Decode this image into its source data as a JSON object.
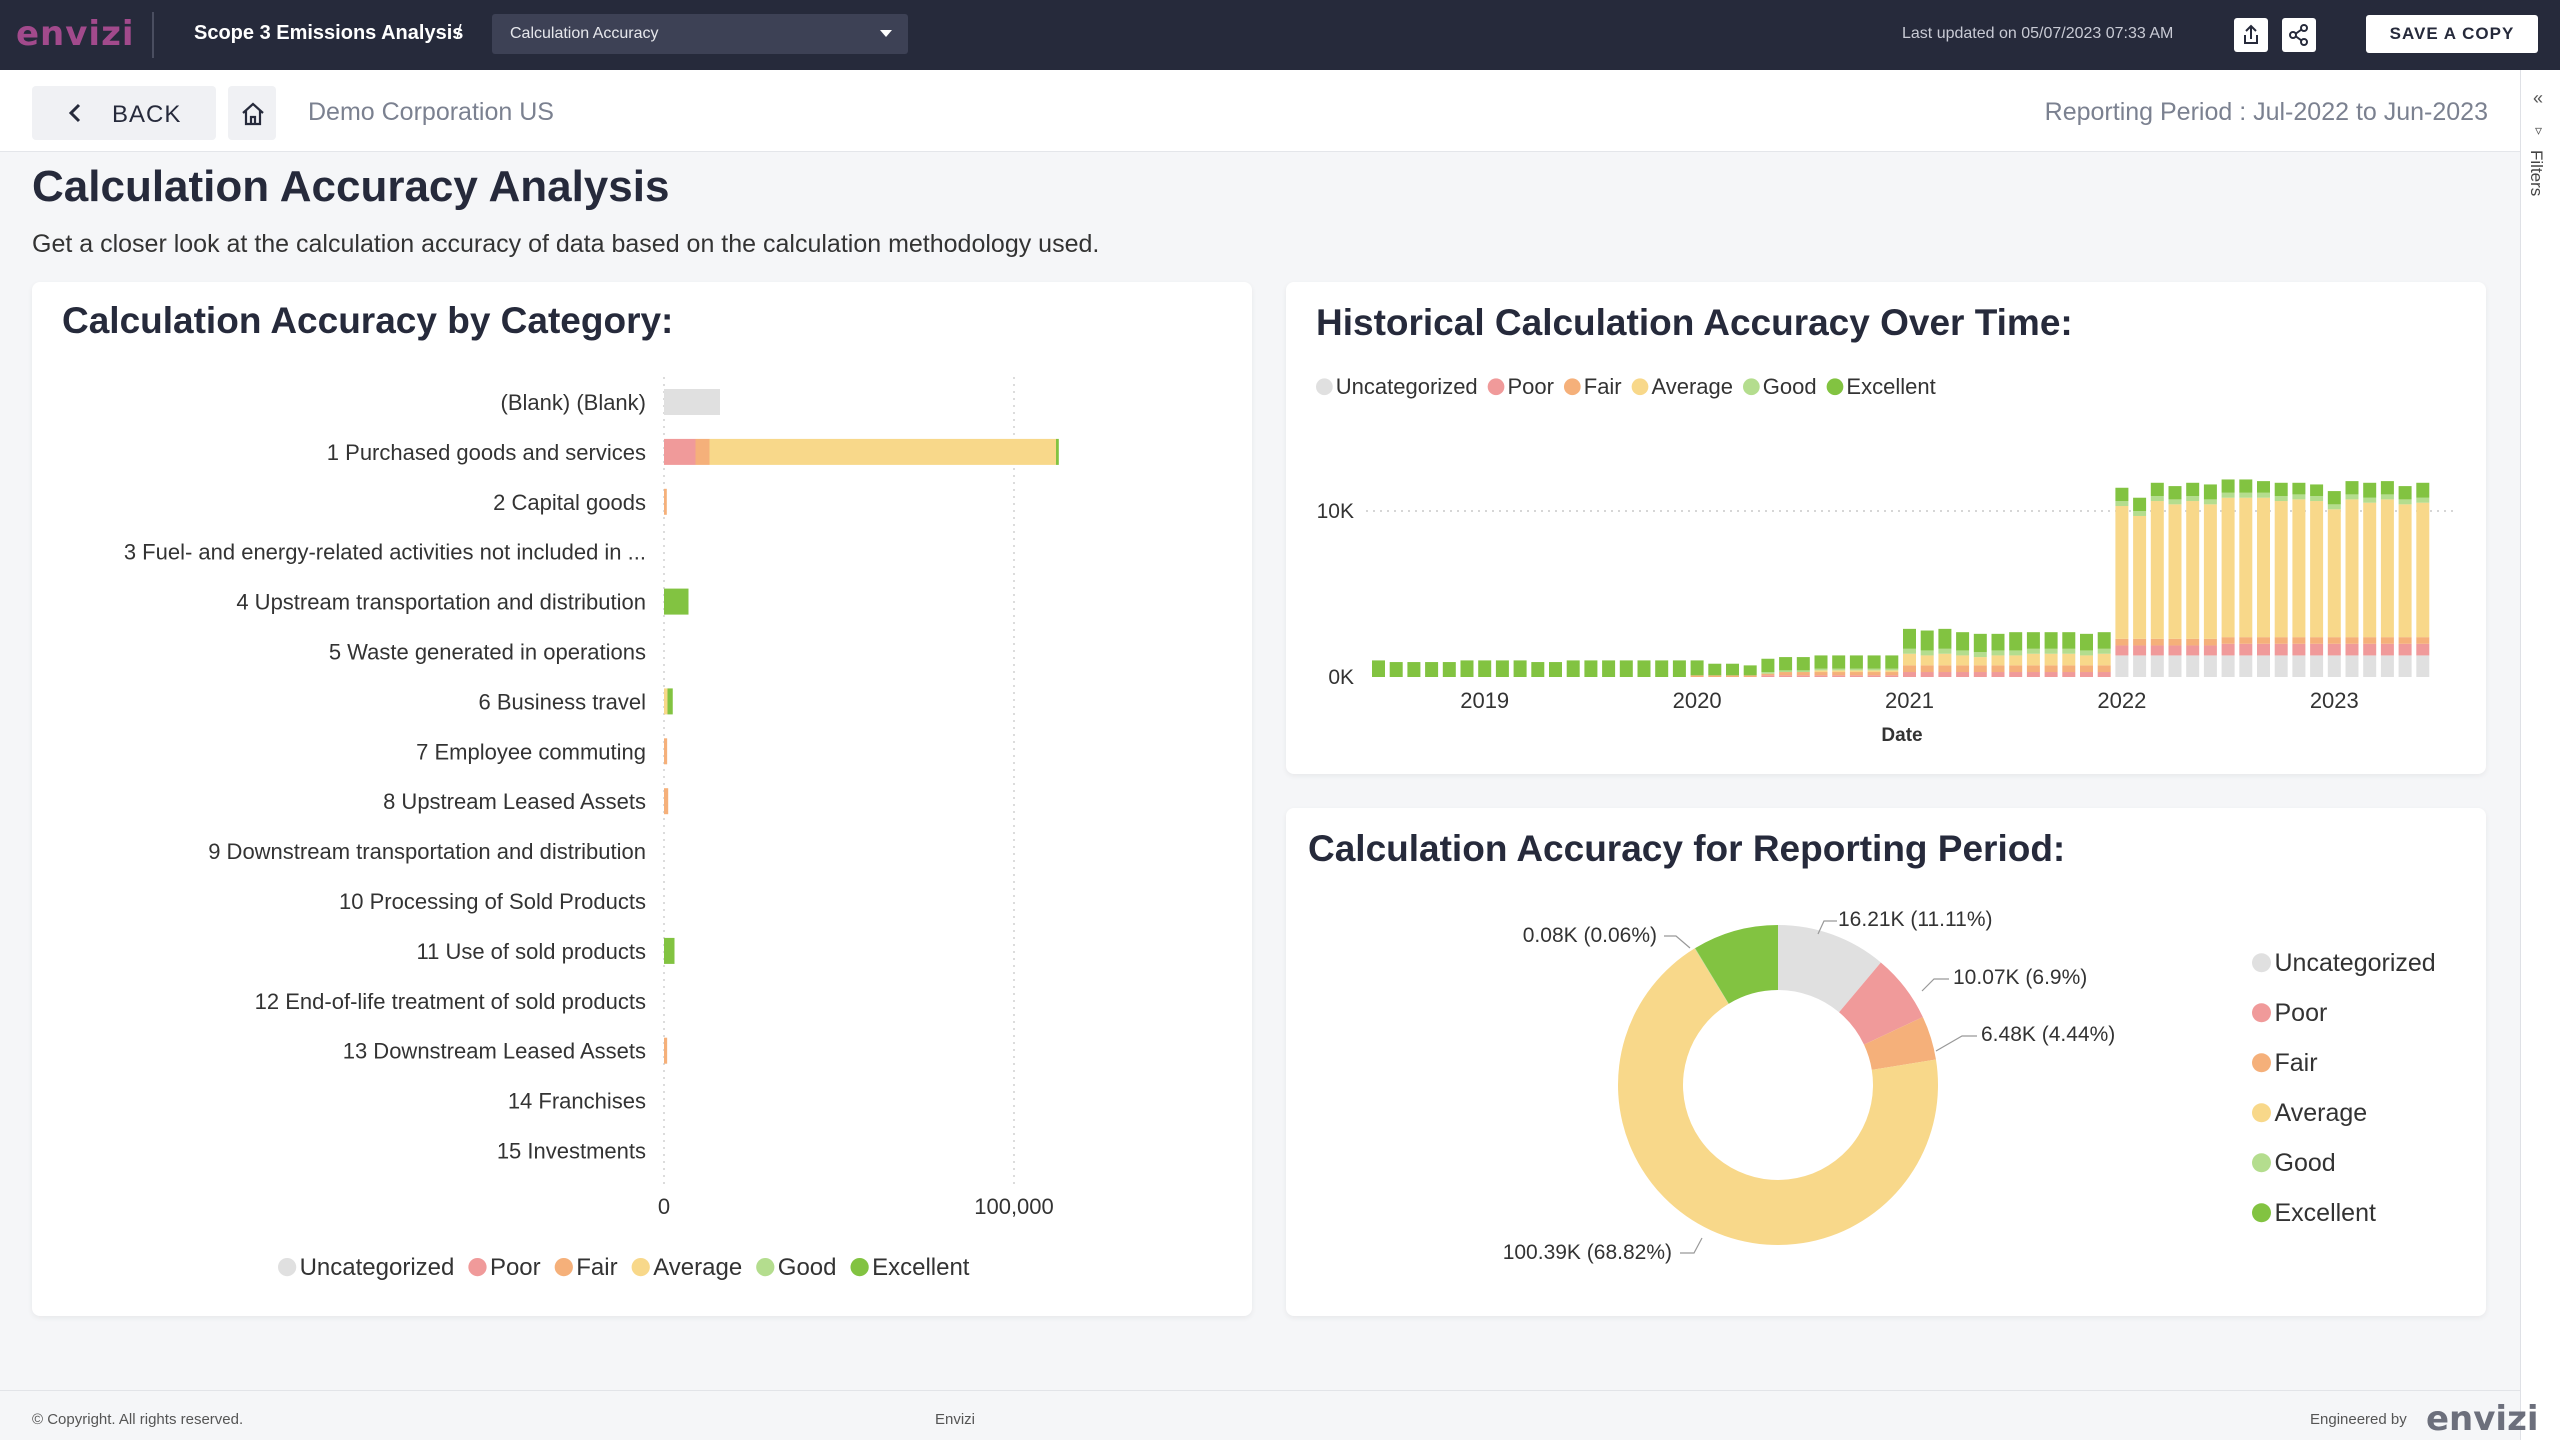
{
  "app": {
    "logo": "envizi",
    "title": "Scope 3 Emissions Analysis",
    "separator": "/"
  },
  "page_select": {
    "selected": "Calculation Accuracy"
  },
  "toolbar": {
    "last_updated": "Last updated on 05/07/2023 07:33 AM",
    "save_label": "SAVE A COPY"
  },
  "nav": {
    "back_label": "BACK",
    "organization": "Demo Corporation US",
    "reporting_period": "Reporting Period : Jul-2022 to Jun-2023"
  },
  "filters_rail": {
    "label": "Filters"
  },
  "page": {
    "title": "Calculation Accuracy Analysis",
    "description": "Get a closer look at the calculation accuracy of data based on the calculation methodology used."
  },
  "legend": [
    "Uncategorized",
    "Poor",
    "Fair",
    "Average",
    "Good",
    "Excellent"
  ],
  "colors": {
    "Uncategorized": "#e0e0e0",
    "Poor": "#f09a9a",
    "Fair": "#f5b07a",
    "Average": "#f8d88a",
    "Good": "#b4dd8e",
    "Excellent": "#82c341"
  },
  "cards": {
    "by_category": {
      "title": "Calculation Accuracy by Category:"
    },
    "historical": {
      "title": "Historical Calculation Accuracy Over Time:"
    },
    "reporting": {
      "title": "Calculation Accuracy for Reporting Period:"
    }
  },
  "chart_data": [
    {
      "type": "bar",
      "orientation": "horizontal",
      "stacked": true,
      "title": "Calculation Accuracy by Category:",
      "categories": [
        "(Blank) (Blank)",
        "1 Purchased goods and services",
        "2 Capital goods",
        "3 Fuel- and energy-related activities not included in ...",
        "4 Upstream transportation and distribution",
        "5 Waste generated in operations",
        "6 Business travel",
        "7 Employee commuting",
        "8 Upstream Leased Assets",
        "9 Downstream transportation and distribution",
        "10 Processing of Sold Products",
        "11 Use of sold products",
        "12 End-of-life treatment of sold products",
        "13 Downstream Leased Assets",
        "14 Franchises",
        "15 Investments"
      ],
      "series": [
        {
          "name": "Uncategorized",
          "values": [
            16000,
            0,
            0,
            0,
            0,
            0,
            0,
            0,
            0,
            0,
            0,
            0,
            0,
            0,
            0,
            0
          ]
        },
        {
          "name": "Poor",
          "values": [
            0,
            9000,
            0,
            0,
            0,
            0,
            0,
            0,
            0,
            0,
            0,
            0,
            0,
            0,
            0,
            0
          ]
        },
        {
          "name": "Fair",
          "values": [
            0,
            4000,
            800,
            0,
            0,
            0,
            0,
            900,
            1200,
            0,
            0,
            0,
            0,
            900,
            0,
            0
          ]
        },
        {
          "name": "Average",
          "values": [
            0,
            99000,
            0,
            0,
            0,
            0,
            1000,
            0,
            0,
            0,
            0,
            0,
            0,
            0,
            0,
            0
          ]
        },
        {
          "name": "Good",
          "values": [
            0,
            0,
            0,
            0,
            0,
            0,
            0,
            0,
            0,
            0,
            0,
            0,
            0,
            0,
            0,
            0
          ]
        },
        {
          "name": "Excellent",
          "values": [
            0,
            800,
            0,
            0,
            7000,
            0,
            1500,
            0,
            0,
            0,
            0,
            3000,
            0,
            0,
            0,
            0
          ]
        }
      ],
      "xlim": [
        0,
        140000
      ],
      "xticks": [
        0,
        100000
      ],
      "xtick_labels": [
        "0",
        "100,000"
      ],
      "legend": "bottom"
    },
    {
      "type": "bar",
      "stacked": true,
      "title": "Historical Calculation Accuracy Over Time:",
      "xlabel": "Date",
      "x_range": [
        "2018-07",
        "2023-06"
      ],
      "xtick_labels": [
        "2019",
        "2020",
        "2021",
        "2022",
        "2023"
      ],
      "yticks": [
        0,
        10000
      ],
      "ytick_labels": [
        "0K",
        "10K"
      ],
      "ylim": [
        0,
        13000
      ],
      "segments_order": [
        "Uncategorized",
        "Poor",
        "Fair",
        "Average",
        "Good",
        "Excellent"
      ],
      "periods": [
        {
          "t": "2018-07",
          "v": [
            0,
            0,
            0,
            0,
            0,
            1000
          ]
        },
        {
          "t": "2018-08",
          "v": [
            0,
            0,
            0,
            0,
            0,
            900
          ]
        },
        {
          "t": "2018-09",
          "v": [
            0,
            0,
            0,
            0,
            0,
            900
          ]
        },
        {
          "t": "2018-10",
          "v": [
            0,
            0,
            0,
            0,
            0,
            900
          ]
        },
        {
          "t": "2018-11",
          "v": [
            0,
            0,
            0,
            0,
            0,
            900
          ]
        },
        {
          "t": "2018-12",
          "v": [
            0,
            0,
            0,
            0,
            0,
            1000
          ]
        },
        {
          "t": "2019-01",
          "v": [
            0,
            0,
            0,
            0,
            0,
            1000
          ]
        },
        {
          "t": "2019-02",
          "v": [
            0,
            0,
            0,
            0,
            0,
            1000
          ]
        },
        {
          "t": "2019-03",
          "v": [
            0,
            0,
            0,
            0,
            0,
            1000
          ]
        },
        {
          "t": "2019-04",
          "v": [
            0,
            0,
            0,
            0,
            0,
            900
          ]
        },
        {
          "t": "2019-05",
          "v": [
            0,
            0,
            0,
            0,
            0,
            900
          ]
        },
        {
          "t": "2019-06",
          "v": [
            0,
            0,
            0,
            0,
            0,
            1000
          ]
        },
        {
          "t": "2019-07",
          "v": [
            0,
            0,
            0,
            0,
            0,
            1000
          ]
        },
        {
          "t": "2019-08",
          "v": [
            0,
            0,
            0,
            0,
            0,
            1000
          ]
        },
        {
          "t": "2019-09",
          "v": [
            0,
            0,
            0,
            0,
            0,
            1000
          ]
        },
        {
          "t": "2019-10",
          "v": [
            0,
            0,
            0,
            0,
            0,
            1000
          ]
        },
        {
          "t": "2019-11",
          "v": [
            0,
            0,
            0,
            0,
            0,
            1000
          ]
        },
        {
          "t": "2019-12",
          "v": [
            0,
            0,
            0,
            0,
            0,
            1000
          ]
        },
        {
          "t": "2020-01",
          "v": [
            0,
            0,
            100,
            0,
            0,
            900
          ]
        },
        {
          "t": "2020-02",
          "v": [
            0,
            0,
            100,
            0,
            0,
            700
          ]
        },
        {
          "t": "2020-03",
          "v": [
            0,
            0,
            100,
            0,
            0,
            700
          ]
        },
        {
          "t": "2020-04",
          "v": [
            0,
            0,
            100,
            0,
            0,
            600
          ]
        },
        {
          "t": "2020-05",
          "v": [
            0,
            100,
            100,
            0,
            100,
            800
          ]
        },
        {
          "t": "2020-06",
          "v": [
            0,
            100,
            200,
            0,
            100,
            800
          ]
        },
        {
          "t": "2020-07",
          "v": [
            0,
            100,
            200,
            0,
            100,
            800
          ]
        },
        {
          "t": "2020-08",
          "v": [
            0,
            100,
            200,
            100,
            100,
            800
          ]
        },
        {
          "t": "2020-09",
          "v": [
            0,
            100,
            200,
            100,
            100,
            800
          ]
        },
        {
          "t": "2020-10",
          "v": [
            0,
            100,
            200,
            100,
            100,
            800
          ]
        },
        {
          "t": "2020-11",
          "v": [
            0,
            100,
            200,
            100,
            100,
            800
          ]
        },
        {
          "t": "2020-12",
          "v": [
            0,
            100,
            200,
            100,
            100,
            800
          ]
        },
        {
          "t": "2021-01",
          "v": [
            0,
            300,
            400,
            700,
            300,
            1200
          ]
        },
        {
          "t": "2021-02",
          "v": [
            0,
            300,
            400,
            600,
            300,
            1200
          ]
        },
        {
          "t": "2021-03",
          "v": [
            0,
            300,
            400,
            700,
            300,
            1200
          ]
        },
        {
          "t": "2021-04",
          "v": [
            0,
            300,
            400,
            600,
            300,
            1100
          ]
        },
        {
          "t": "2021-05",
          "v": [
            0,
            300,
            400,
            500,
            300,
            1100
          ]
        },
        {
          "t": "2021-06",
          "v": [
            0,
            300,
            400,
            600,
            300,
            1000
          ]
        },
        {
          "t": "2021-07",
          "v": [
            0,
            300,
            400,
            600,
            300,
            1100
          ]
        },
        {
          "t": "2021-08",
          "v": [
            0,
            300,
            400,
            700,
            300,
            1000
          ]
        },
        {
          "t": "2021-09",
          "v": [
            0,
            300,
            400,
            700,
            300,
            1000
          ]
        },
        {
          "t": "2021-10",
          "v": [
            0,
            300,
            400,
            700,
            300,
            1000
          ]
        },
        {
          "t": "2021-11",
          "v": [
            0,
            300,
            400,
            600,
            300,
            1000
          ]
        },
        {
          "t": "2021-12",
          "v": [
            0,
            300,
            400,
            700,
            300,
            1000
          ]
        },
        {
          "t": "2022-01",
          "v": [
            1300,
            600,
            400,
            8000,
            300,
            800
          ]
        },
        {
          "t": "2022-02",
          "v": [
            1300,
            600,
            400,
            7400,
            300,
            800
          ]
        },
        {
          "t": "2022-03",
          "v": [
            1300,
            600,
            400,
            8300,
            300,
            800
          ]
        },
        {
          "t": "2022-04",
          "v": [
            1300,
            600,
            400,
            8100,
            300,
            800
          ]
        },
        {
          "t": "2022-05",
          "v": [
            1300,
            600,
            400,
            8300,
            300,
            800
          ]
        },
        {
          "t": "2022-06",
          "v": [
            1300,
            600,
            400,
            8100,
            300,
            900
          ]
        },
        {
          "t": "2022-07",
          "v": [
            1300,
            700,
            400,
            8400,
            300,
            800
          ]
        },
        {
          "t": "2022-08",
          "v": [
            1300,
            700,
            400,
            8400,
            300,
            800
          ]
        },
        {
          "t": "2022-09",
          "v": [
            1300,
            700,
            400,
            8400,
            300,
            700
          ]
        },
        {
          "t": "2022-10",
          "v": [
            1300,
            700,
            400,
            8200,
            300,
            800
          ]
        },
        {
          "t": "2022-11",
          "v": [
            1300,
            700,
            400,
            8300,
            300,
            700
          ]
        },
        {
          "t": "2022-12",
          "v": [
            1300,
            700,
            400,
            8200,
            300,
            700
          ]
        },
        {
          "t": "2023-01",
          "v": [
            1300,
            700,
            400,
            7700,
            300,
            800
          ]
        },
        {
          "t": "2023-02",
          "v": [
            1300,
            700,
            400,
            8300,
            300,
            800
          ]
        },
        {
          "t": "2023-03",
          "v": [
            1300,
            700,
            400,
            8100,
            300,
            900
          ]
        },
        {
          "t": "2023-04",
          "v": [
            1300,
            700,
            400,
            8300,
            300,
            800
          ]
        },
        {
          "t": "2023-05",
          "v": [
            1300,
            700,
            400,
            8000,
            300,
            800
          ]
        },
        {
          "t": "2023-06",
          "v": [
            1300,
            700,
            400,
            8100,
            300,
            900
          ]
        }
      ],
      "legend": "top-left"
    },
    {
      "type": "pie",
      "donut": true,
      "title": "Calculation Accuracy for Reporting Period:",
      "slices": [
        {
          "name": "Uncategorized",
          "value": 16.21,
          "label": "16.21K (11.11%)"
        },
        {
          "name": "Poor",
          "value": 10.07,
          "label": "10.07K (6.9%)"
        },
        {
          "name": "Fair",
          "value": 6.48,
          "label": "6.48K (4.44%)"
        },
        {
          "name": "Average",
          "value": 100.39,
          "label": "100.39K (68.82%)"
        },
        {
          "name": "Good",
          "value": 0.08,
          "label": "0.08K (0.06%)"
        },
        {
          "name": "Excellent",
          "value": 12.64,
          "label": ""
        }
      ],
      "unit": "K",
      "legend": "right"
    }
  ],
  "footer": {
    "copyright": "© Copyright. All rights reserved.",
    "center": "Envizi",
    "engineered_by": "Engineered by",
    "logo": "envizi"
  }
}
